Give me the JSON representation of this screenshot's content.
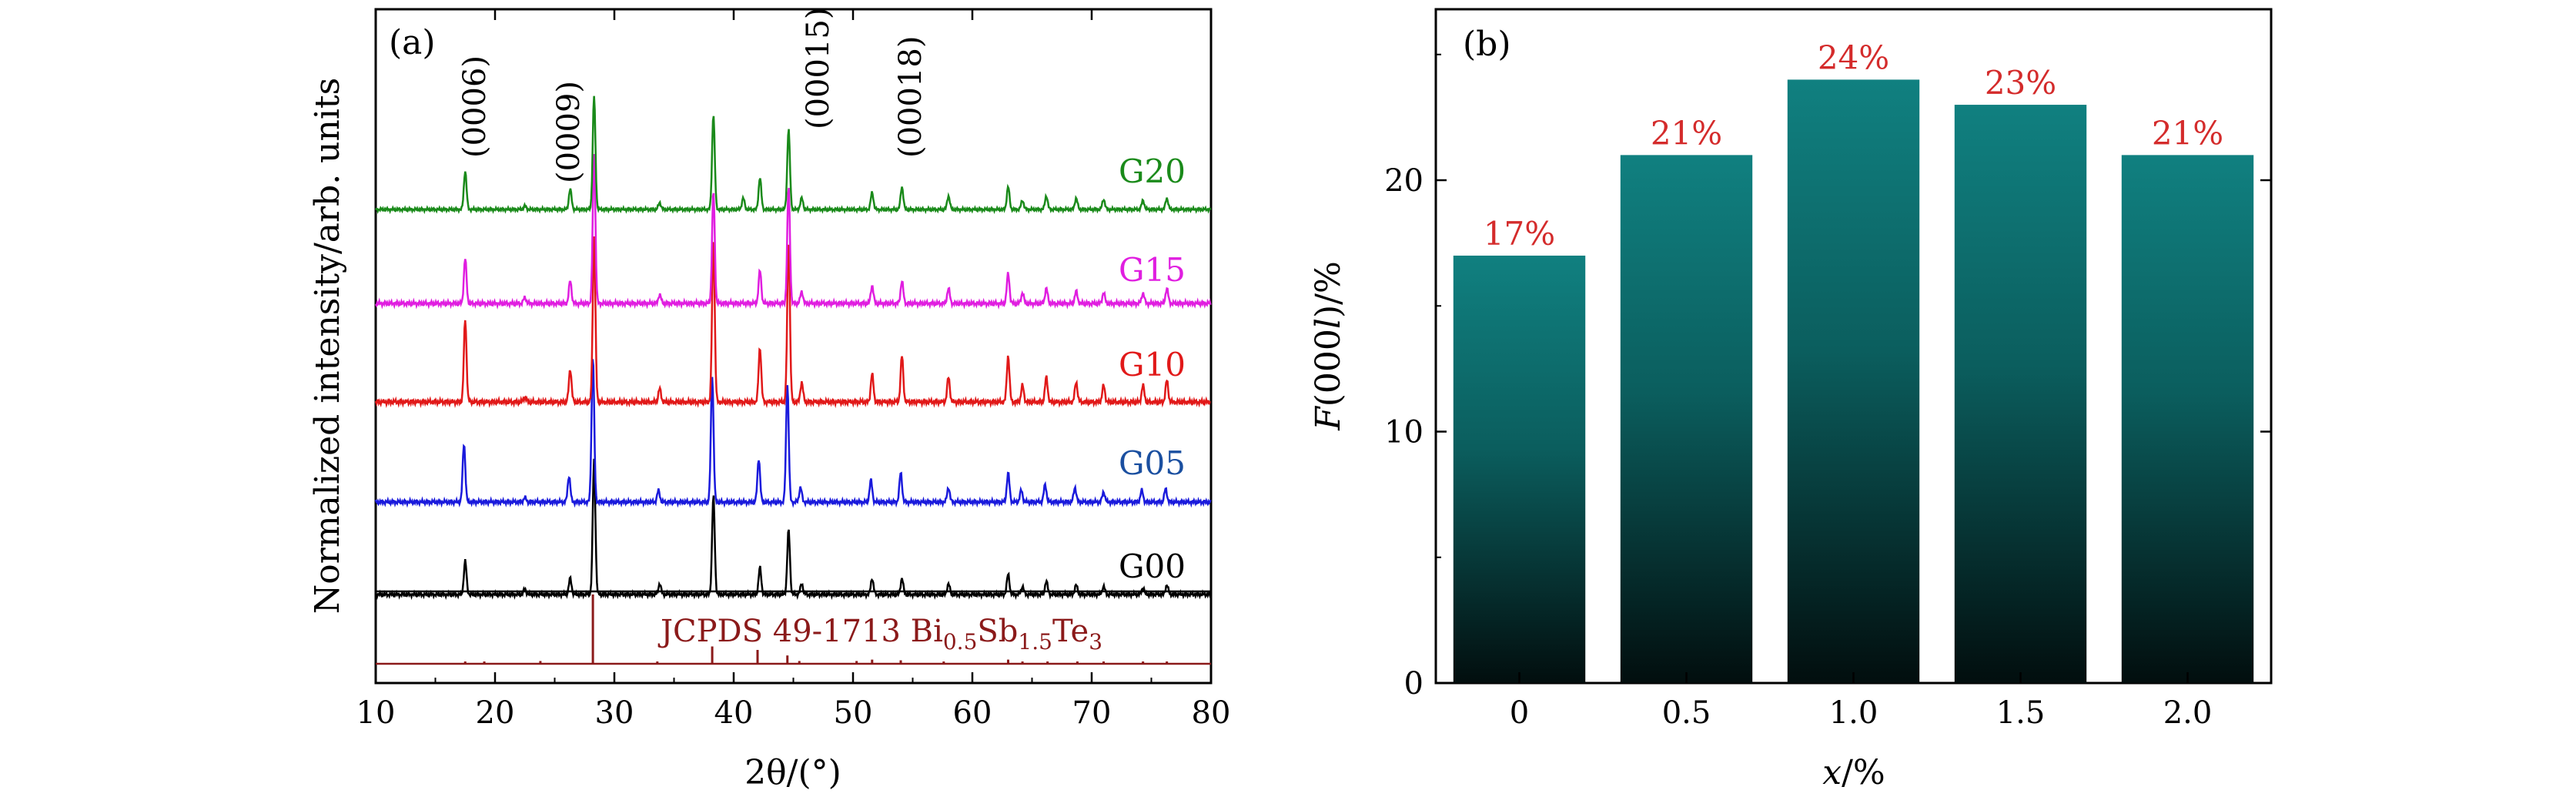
{
  "chart_data": [
    {
      "panel": "(a)",
      "type": "line",
      "xlabel": "2θ/(°)",
      "ylabel": "Normalized intensity/arb. units",
      "xlim": [
        10,
        80
      ],
      "xticks": [
        10,
        20,
        30,
        40,
        50,
        60,
        70,
        80
      ],
      "peak_annotations": [
        {
          "label": "(0006)",
          "x": 17.5
        },
        {
          "label": "(0009)",
          "x": 26.3
        },
        {
          "label": "(00015)",
          "x": 44.6
        },
        {
          "label": "(00018)",
          "x": 54.0
        }
      ],
      "reference_pattern": {
        "name": "JCPDS 49-1713 Bi",
        "sub1": "0.5",
        "mid": "Sb",
        "sub2": "1.5",
        "end": "Te",
        "sub3": "3",
        "color": "#8b1a1a",
        "peaks": [
          {
            "x": 17.5,
            "i": 0.03
          },
          {
            "x": 19.1,
            "i": 0.03
          },
          {
            "x": 23.8,
            "i": 0.04
          },
          {
            "x": 28.2,
            "i": 1.0
          },
          {
            "x": 33.6,
            "i": 0.03
          },
          {
            "x": 38.2,
            "i": 0.25
          },
          {
            "x": 42.0,
            "i": 0.2
          },
          {
            "x": 44.5,
            "i": 0.12
          },
          {
            "x": 45.5,
            "i": 0.04
          },
          {
            "x": 50.3,
            "i": 0.04
          },
          {
            "x": 51.6,
            "i": 0.06
          },
          {
            "x": 54.0,
            "i": 0.05
          },
          {
            "x": 57.6,
            "i": 0.03
          },
          {
            "x": 63.0,
            "i": 0.06
          },
          {
            "x": 64.2,
            "i": 0.03
          },
          {
            "x": 66.3,
            "i": 0.03
          },
          {
            "x": 68.8,
            "i": 0.03
          },
          {
            "x": 71.0,
            "i": 0.03
          },
          {
            "x": 74.3,
            "i": 0.02
          },
          {
            "x": 76.3,
            "i": 0.03
          }
        ]
      },
      "series": [
        {
          "name": "G00",
          "color": "#000000",
          "peaks": [
            {
              "x": 17.5,
              "h": 0.25
            },
            {
              "x": 22.5,
              "h": 0.04
            },
            {
              "x": 26.3,
              "h": 0.12
            },
            {
              "x": 28.3,
              "h": 1.0
            },
            {
              "x": 33.8,
              "h": 0.08
            },
            {
              "x": 38.3,
              "h": 0.73
            },
            {
              "x": 42.2,
              "h": 0.2
            },
            {
              "x": 44.6,
              "h": 0.48
            },
            {
              "x": 45.7,
              "h": 0.08
            },
            {
              "x": 51.6,
              "h": 0.12
            },
            {
              "x": 54.1,
              "h": 0.12
            },
            {
              "x": 58.0,
              "h": 0.08
            },
            {
              "x": 63.0,
              "h": 0.15
            },
            {
              "x": 64.2,
              "h": 0.06
            },
            {
              "x": 66.2,
              "h": 0.1
            },
            {
              "x": 68.7,
              "h": 0.07
            },
            {
              "x": 71.0,
              "h": 0.06
            },
            {
              "x": 74.3,
              "h": 0.05
            },
            {
              "x": 76.3,
              "h": 0.07
            }
          ]
        },
        {
          "name": "G05",
          "color": "#1a1adc",
          "peaks": [
            {
              "x": 17.4,
              "h": 0.4
            },
            {
              "x": 22.5,
              "h": 0.03
            },
            {
              "x": 26.2,
              "h": 0.18
            },
            {
              "x": 28.2,
              "h": 1.0
            },
            {
              "x": 33.7,
              "h": 0.08
            },
            {
              "x": 38.2,
              "h": 0.87
            },
            {
              "x": 42.1,
              "h": 0.3
            },
            {
              "x": 44.5,
              "h": 0.81
            },
            {
              "x": 45.6,
              "h": 0.1
            },
            {
              "x": 51.5,
              "h": 0.15
            },
            {
              "x": 54.0,
              "h": 0.2
            },
            {
              "x": 58.0,
              "h": 0.1
            },
            {
              "x": 63.0,
              "h": 0.2
            },
            {
              "x": 64.1,
              "h": 0.08
            },
            {
              "x": 66.1,
              "h": 0.12
            },
            {
              "x": 68.6,
              "h": 0.1
            },
            {
              "x": 71.0,
              "h": 0.07
            },
            {
              "x": 74.2,
              "h": 0.08
            },
            {
              "x": 76.2,
              "h": 0.09
            }
          ]
        },
        {
          "name": "G10",
          "color": "#e11919",
          "peaks": [
            {
              "x": 17.5,
              "h": 0.5
            },
            {
              "x": 22.5,
              "h": 0.03
            },
            {
              "x": 26.3,
              "h": 0.2
            },
            {
              "x": 28.3,
              "h": 1.0
            },
            {
              "x": 33.8,
              "h": 0.08
            },
            {
              "x": 38.3,
              "h": 0.99
            },
            {
              "x": 42.2,
              "h": 0.33
            },
            {
              "x": 44.6,
              "h": 0.98
            },
            {
              "x": 45.7,
              "h": 0.12
            },
            {
              "x": 51.6,
              "h": 0.17
            },
            {
              "x": 54.1,
              "h": 0.28
            },
            {
              "x": 58.0,
              "h": 0.15
            },
            {
              "x": 63.0,
              "h": 0.28
            },
            {
              "x": 64.2,
              "h": 0.1
            },
            {
              "x": 66.2,
              "h": 0.15
            },
            {
              "x": 68.7,
              "h": 0.12
            },
            {
              "x": 71.0,
              "h": 0.1
            },
            {
              "x": 74.3,
              "h": 0.1
            },
            {
              "x": 76.3,
              "h": 0.13
            }
          ]
        },
        {
          "name": "G15",
          "color": "#e01ee0",
          "peaks": [
            {
              "x": 17.5,
              "h": 0.3
            },
            {
              "x": 22.5,
              "h": 0.04
            },
            {
              "x": 26.3,
              "h": 0.15
            },
            {
              "x": 28.3,
              "h": 1.0
            },
            {
              "x": 33.8,
              "h": 0.06
            },
            {
              "x": 38.3,
              "h": 0.75
            },
            {
              "x": 42.2,
              "h": 0.22
            },
            {
              "x": 44.6,
              "h": 0.78
            },
            {
              "x": 45.7,
              "h": 0.08
            },
            {
              "x": 51.6,
              "h": 0.12
            },
            {
              "x": 54.1,
              "h": 0.15
            },
            {
              "x": 58.0,
              "h": 0.1
            },
            {
              "x": 63.0,
              "h": 0.2
            },
            {
              "x": 64.2,
              "h": 0.07
            },
            {
              "x": 66.2,
              "h": 0.1
            },
            {
              "x": 68.7,
              "h": 0.08
            },
            {
              "x": 71.0,
              "h": 0.07
            },
            {
              "x": 74.3,
              "h": 0.07
            },
            {
              "x": 76.3,
              "h": 0.1
            }
          ]
        },
        {
          "name": "G20",
          "color": "#1a8a1a",
          "peaks": [
            {
              "x": 17.5,
              "h": 0.34
            },
            {
              "x": 22.5,
              "h": 0.03
            },
            {
              "x": 26.3,
              "h": 0.18
            },
            {
              "x": 28.3,
              "h": 1.0
            },
            {
              "x": 33.8,
              "h": 0.06
            },
            {
              "x": 38.3,
              "h": 0.84
            },
            {
              "x": 40.8,
              "h": 0.1
            },
            {
              "x": 42.2,
              "h": 0.28
            },
            {
              "x": 44.6,
              "h": 0.71
            },
            {
              "x": 45.7,
              "h": 0.1
            },
            {
              "x": 51.6,
              "h": 0.15
            },
            {
              "x": 54.1,
              "h": 0.2
            },
            {
              "x": 58.0,
              "h": 0.12
            },
            {
              "x": 63.0,
              "h": 0.2
            },
            {
              "x": 64.2,
              "h": 0.08
            },
            {
              "x": 66.2,
              "h": 0.12
            },
            {
              "x": 68.7,
              "h": 0.1
            },
            {
              "x": 71.0,
              "h": 0.09
            },
            {
              "x": 74.3,
              "h": 0.08
            },
            {
              "x": 76.3,
              "h": 0.1
            }
          ]
        }
      ]
    },
    {
      "panel": "(b)",
      "type": "bar",
      "categories": [
        "0",
        "0.5",
        "1.0",
        "1.5",
        "2.0"
      ],
      "values": [
        17,
        21,
        24,
        23,
        21
      ],
      "value_labels": [
        "17%",
        "21%",
        "24%",
        "23%",
        "21%"
      ],
      "xlabel_var": "x",
      "xlabel_unit": "/%",
      "ylabel_prefix": "F",
      "ylabel_arg": "(000",
      "ylabel_var": "l",
      "ylabel_suffix": ")/%",
      "ylim": [
        0,
        26.8
      ],
      "yticks": [
        0,
        10,
        20
      ],
      "bar_color_top": "#108080",
      "bar_color_bottom": "#020e0e",
      "label_color": "#d42b2b"
    }
  ]
}
